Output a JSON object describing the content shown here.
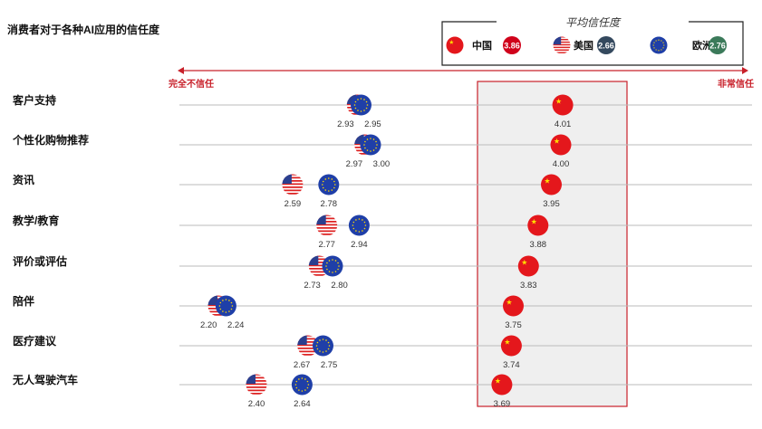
{
  "chart_data": {
    "type": "scatter",
    "title": "消费者对于各种AI应用的信任度",
    "axis": {
      "left_label": "完全不信任",
      "right_label": "非常信任"
    },
    "legend": {
      "title": "平均信任度",
      "placement": "top-right",
      "items": [
        {
          "name": "中国",
          "average": "3.86",
          "color": "#d0021b"
        },
        {
          "name": "美国",
          "average": "2.66",
          "color": "#34495e"
        },
        {
          "name": "欧洲",
          "average": "2.76",
          "color": "#3b7a5a"
        }
      ]
    },
    "categories": [
      "客户支持",
      "个性化购物推荐",
      "资讯",
      "教学/教育",
      "评价或评估",
      "陪伴",
      "医疗建议",
      "无人驾驶汽车"
    ],
    "series": [
      {
        "name": "美国",
        "values": [
          2.93,
          2.97,
          2.59,
          2.77,
          2.73,
          2.2,
          2.67,
          2.4
        ]
      },
      {
        "name": "欧洲",
        "values": [
          2.95,
          3.0,
          2.78,
          2.94,
          2.8,
          2.24,
          2.75,
          2.64
        ]
      },
      {
        "name": "中国",
        "values": [
          4.01,
          4.0,
          3.95,
          3.88,
          3.83,
          3.75,
          3.74,
          3.69
        ]
      }
    ]
  }
}
